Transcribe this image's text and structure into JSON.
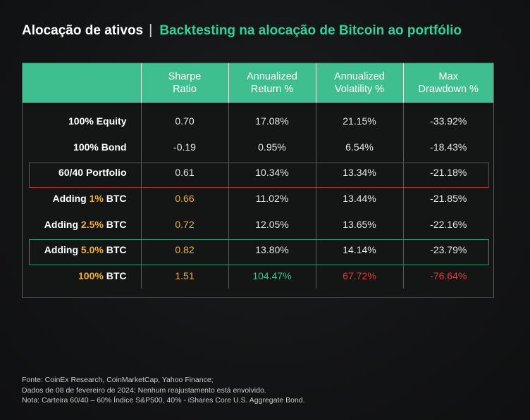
{
  "header": {
    "title": "Alocação de ativos",
    "separator": "|",
    "subtitle": "Backtesting na alocação de Bitcoin ao portfólio"
  },
  "chart_data": {
    "type": "table",
    "columns": [
      "",
      "Sharpe Ratio",
      "Annualized Return %",
      "Annualized Volatility %",
      "Max Drawdown %"
    ],
    "column_lines": [
      [
        "Sharpe",
        "Ratio"
      ],
      [
        "Annualized",
        "Return %"
      ],
      [
        "Annualized",
        "Volatility %"
      ],
      [
        "Max",
        "Drawdown %"
      ]
    ],
    "rows": [
      {
        "label": "100% Equity",
        "values": [
          "0.70",
          "17.08%",
          "21.15%",
          "-33.92%"
        ]
      },
      {
        "label": "100% Bond",
        "values": [
          "-0.19",
          "0.95%",
          "6.54%",
          "-18.43%"
        ]
      },
      {
        "label": "60/40 Portfolio",
        "values": [
          "0.61",
          "10.34%",
          "13.34%",
          "-21.18%"
        ]
      },
      {
        "label_prefix": "Adding ",
        "label_highlight": "1%",
        "label_suffix": " BTC",
        "values": [
          "0.66",
          "11.02%",
          "13.44%",
          "-21.85%"
        ]
      },
      {
        "label_prefix": "Adding ",
        "label_highlight": "2.5%",
        "label_suffix": " BTC",
        "values": [
          "0.72",
          "12.05%",
          "13.65%",
          "-22.16%"
        ]
      },
      {
        "label_prefix": "Adding ",
        "label_highlight": "5.0%",
        "label_suffix": " BTC",
        "values": [
          "0.82",
          "13.80%",
          "14.14%",
          "-23.79%"
        ]
      },
      {
        "label_highlight": "100%",
        "label_suffix": " BTC",
        "values": [
          "1.51",
          "104.47%",
          "67.72%",
          "-76.64%"
        ]
      }
    ],
    "highlighted_rows": {
      "red_box": "60/40 Portfolio",
      "green_box": "Adding 5.0% BTC"
    }
  },
  "colors": {
    "accent_green": "#3fbf8f",
    "orange": "#f2b23a",
    "red": "#e03a3a",
    "background": "#131415"
  },
  "footnote": {
    "line1": "Fonte: CoinEx Research, CoinMarketCap, Yahoo Finance;",
    "line2": "Dados de 08 de fevereiro de 2024; Nenhum reajustamento está envolvido.",
    "line3": "Nota: Carteira 60/40 – 60% Índice S&P500, 40% - iShares Core U.S. Aggregate Bond."
  }
}
